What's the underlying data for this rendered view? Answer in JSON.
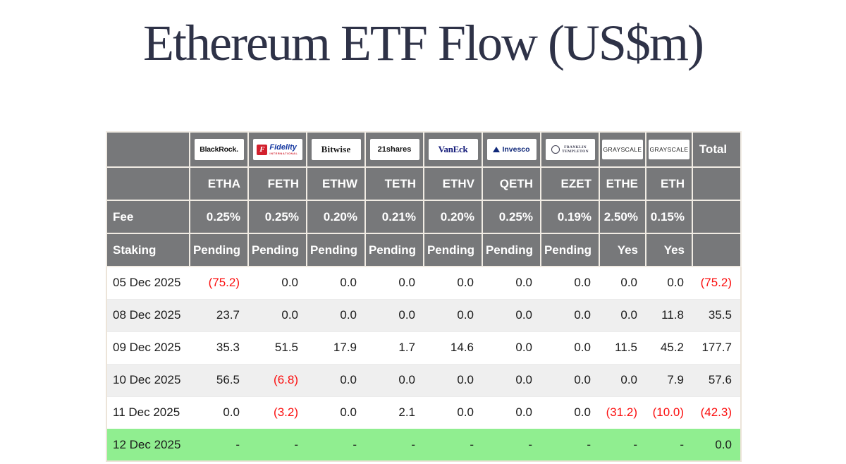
{
  "title": "Ethereum ETF Flow (US$m)",
  "colors": {
    "header_gray": "#77787a",
    "alt_row": "#efefef",
    "highlight_green": "#90ee90",
    "negative_red": "#fb0f0f",
    "title_navy": "#2e3247",
    "table_border": "#ece4d9"
  },
  "logos": {
    "blackrock": "BlackRock.",
    "fidelity_f": "F",
    "fidelity": "Fidelity",
    "fidelity_sub": "INTERNATIONAL",
    "bitwise": "Bitwise",
    "shares21": "21shares",
    "vaneck": "VanEck",
    "invesco": "Invesco",
    "franklin_line1": "FRANKLIN",
    "franklin_line2": "TEMPLETON",
    "franklin_emblem": "ā",
    "grayscale_ethe": "GRAYSCALE",
    "grayscale_eth": "GRAYSCALE"
  },
  "header": {
    "total_label": "Total",
    "fee_label": "Fee",
    "staking_label": "Staking",
    "tickers": [
      "ETHA",
      "FETH",
      "ETHW",
      "TETH",
      "ETHV",
      "QETH",
      "EZET",
      "ETHE",
      "ETH"
    ],
    "fees": [
      "0.25%",
      "0.25%",
      "0.20%",
      "0.21%",
      "0.20%",
      "0.25%",
      "0.19%",
      "2.50%",
      "0.15%"
    ],
    "staking": [
      "Pending",
      "Pending",
      "Pending",
      "Pending",
      "Pending",
      "Pending",
      "Pending",
      "Yes",
      "Yes"
    ]
  },
  "rows": [
    {
      "date": "05 Dec 2025",
      "highlight": false,
      "values": [
        "(75.2)",
        "0.0",
        "0.0",
        "0.0",
        "0.0",
        "0.0",
        "0.0",
        "0.0",
        "0.0",
        "(75.2)"
      ]
    },
    {
      "date": "08 Dec 2025",
      "highlight": false,
      "values": [
        "23.7",
        "0.0",
        "0.0",
        "0.0",
        "0.0",
        "0.0",
        "0.0",
        "0.0",
        "11.8",
        "35.5"
      ]
    },
    {
      "date": "09 Dec 2025",
      "highlight": false,
      "values": [
        "35.3",
        "51.5",
        "17.9",
        "1.7",
        "14.6",
        "0.0",
        "0.0",
        "11.5",
        "45.2",
        "177.7"
      ]
    },
    {
      "date": "10 Dec 2025",
      "highlight": false,
      "values": [
        "56.5",
        "(6.8)",
        "0.0",
        "0.0",
        "0.0",
        "0.0",
        "0.0",
        "0.0",
        "7.9",
        "57.6"
      ]
    },
    {
      "date": "11 Dec 2025",
      "highlight": false,
      "values": [
        "0.0",
        "(3.2)",
        "0.0",
        "2.1",
        "0.0",
        "0.0",
        "0.0",
        "(31.2)",
        "(10.0)",
        "(42.3)"
      ]
    },
    {
      "date": "12 Dec 2025",
      "highlight": true,
      "values": [
        "-",
        "-",
        "-",
        "-",
        "-",
        "-",
        "-",
        "-",
        "-",
        "0.0"
      ]
    }
  ]
}
